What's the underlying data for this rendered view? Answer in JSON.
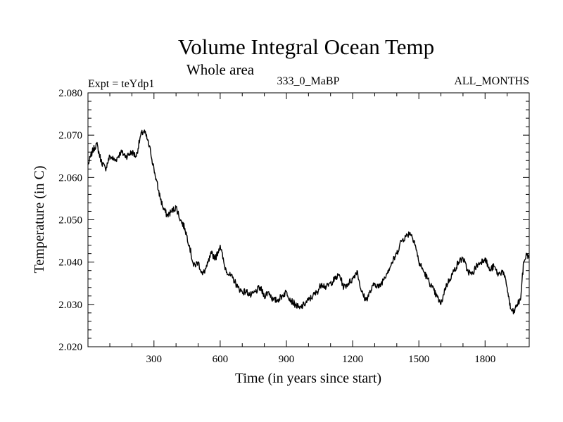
{
  "chart_data": {
    "type": "line",
    "title": "Volume Integral Ocean Temp",
    "subtitle": "Whole area",
    "left_label": "Expt = teYdp1",
    "center_label": "333_0_MaBP",
    "right_label": "ALL_MONTHS",
    "xlabel": "Time (in years since start)",
    "ylabel": "Temperature (in C)",
    "xlim": [
      1,
      2000
    ],
    "ylim": [
      2.02,
      2.08
    ],
    "x_ticks": [
      300,
      600,
      900,
      1200,
      1500,
      1800
    ],
    "x_tick_labels": [
      "300",
      "600",
      "900",
      "1200",
      "1500",
      "1800"
    ],
    "y_ticks": [
      2.02,
      2.03,
      2.04,
      2.05,
      2.06,
      2.07,
      2.08
    ],
    "y_tick_labels": [
      "2.020",
      "2.030",
      "2.040",
      "2.050",
      "2.060",
      "2.070",
      "2.080"
    ],
    "grid": false,
    "series": [
      {
        "name": "Volume Integral Ocean Temp",
        "color": "#000000",
        "x": [
          1,
          20,
          40,
          60,
          80,
          100,
          125,
          150,
          175,
          200,
          220,
          240,
          255,
          270,
          285,
          300,
          320,
          340,
          360,
          380,
          400,
          420,
          440,
          460,
          480,
          500,
          520,
          540,
          560,
          580,
          600,
          620,
          640,
          660,
          680,
          700,
          720,
          740,
          760,
          780,
          800,
          820,
          840,
          860,
          880,
          900,
          920,
          940,
          960,
          980,
          1000,
          1020,
          1040,
          1060,
          1080,
          1100,
          1120,
          1140,
          1160,
          1180,
          1200,
          1220,
          1240,
          1260,
          1280,
          1300,
          1320,
          1340,
          1360,
          1380,
          1400,
          1420,
          1440,
          1460,
          1480,
          1500,
          1520,
          1540,
          1560,
          1580,
          1600,
          1620,
          1640,
          1660,
          1680,
          1700,
          1720,
          1740,
          1760,
          1780,
          1800,
          1820,
          1840,
          1860,
          1880,
          1900,
          1915,
          1930,
          1945,
          1960,
          1975,
          1990,
          2000
        ],
        "y": [
          2.063,
          2.066,
          2.068,
          2.064,
          2.062,
          2.065,
          2.064,
          2.066,
          2.065,
          2.066,
          2.065,
          2.07,
          2.071,
          2.069,
          2.066,
          2.062,
          2.057,
          2.053,
          2.051,
          2.052,
          2.053,
          2.05,
          2.048,
          2.044,
          2.039,
          2.04,
          2.037,
          2.039,
          2.042,
          2.041,
          2.044,
          2.039,
          2.037,
          2.036,
          2.034,
          2.033,
          2.033,
          2.032,
          2.033,
          2.034,
          2.032,
          2.033,
          2.031,
          2.031,
          2.032,
          2.033,
          2.031,
          2.03,
          2.029,
          2.03,
          2.031,
          2.032,
          2.033,
          2.035,
          2.034,
          2.035,
          2.036,
          2.037,
          2.034,
          2.035,
          2.036,
          2.038,
          2.033,
          2.031,
          2.033,
          2.035,
          2.034,
          2.036,
          2.038,
          2.04,
          2.042,
          2.045,
          2.046,
          2.047,
          2.045,
          2.04,
          2.038,
          2.036,
          2.034,
          2.032,
          2.03,
          2.034,
          2.036,
          2.038,
          2.04,
          2.041,
          2.038,
          2.037,
          2.039,
          2.04,
          2.041,
          2.038,
          2.039,
          2.037,
          2.038,
          2.034,
          2.029,
          2.028,
          2.03,
          2.031,
          2.04,
          2.042,
          2.041
        ]
      }
    ]
  }
}
